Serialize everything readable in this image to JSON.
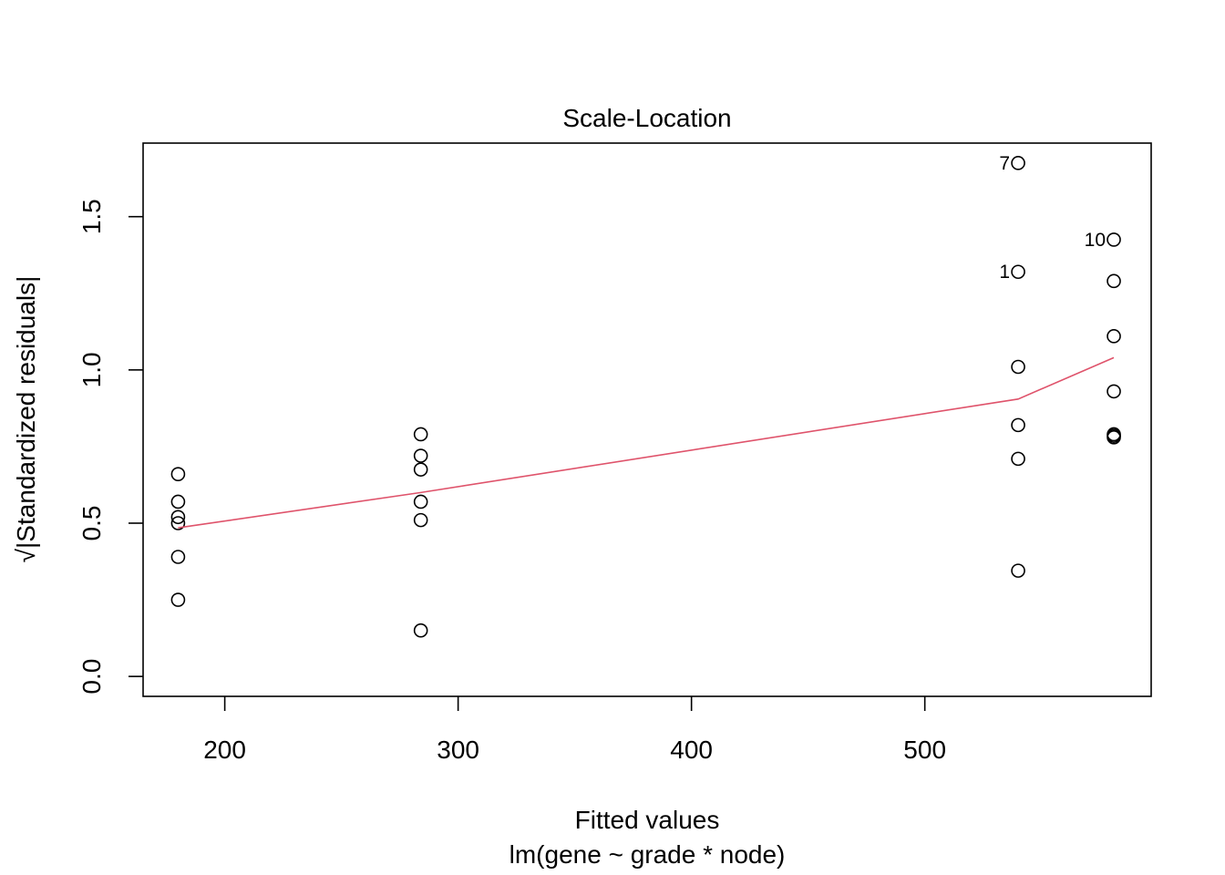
{
  "chart_data": {
    "type": "scatter",
    "title": "Scale-Location",
    "xlabel": "Fitted values",
    "subtitle": "lm(gene ~ grade * node)",
    "ylabel_radical": "√",
    "ylabel": "|Standardized residuals|",
    "xlim": [
      165,
      597
    ],
    "ylim": [
      -0.065,
      1.74
    ],
    "xticks": [
      200,
      300,
      400,
      500
    ],
    "xtick_labels": [
      "200",
      "300",
      "400",
      "500"
    ],
    "yticks": [
      0.0,
      0.5,
      1.0,
      1.5
    ],
    "ytick_labels": [
      "0.0",
      "0.5",
      "1.0",
      "1.5"
    ],
    "grid": false,
    "points": [
      {
        "x": 180,
        "y": 0.66
      },
      {
        "x": 180,
        "y": 0.57
      },
      {
        "x": 180,
        "y": 0.52
      },
      {
        "x": 180,
        "y": 0.5
      },
      {
        "x": 180,
        "y": 0.39
      },
      {
        "x": 180,
        "y": 0.25
      },
      {
        "x": 284,
        "y": 0.79
      },
      {
        "x": 284,
        "y": 0.72
      },
      {
        "x": 284,
        "y": 0.675
      },
      {
        "x": 284,
        "y": 0.57
      },
      {
        "x": 284,
        "y": 0.51
      },
      {
        "x": 284,
        "y": 0.15
      },
      {
        "x": 540,
        "y": 1.675,
        "label": "7"
      },
      {
        "x": 540,
        "y": 1.32,
        "label": "1"
      },
      {
        "x": 540,
        "y": 1.01
      },
      {
        "x": 540,
        "y": 0.82
      },
      {
        "x": 540,
        "y": 0.71
      },
      {
        "x": 540,
        "y": 0.345
      },
      {
        "x": 581,
        "y": 1.425,
        "label": "10"
      },
      {
        "x": 581,
        "y": 1.29
      },
      {
        "x": 581,
        "y": 1.11
      },
      {
        "x": 581,
        "y": 0.93
      },
      {
        "x": 581,
        "y": 0.79
      },
      {
        "x": 581,
        "y": 0.785
      },
      {
        "x": 581,
        "y": 0.78
      }
    ],
    "smooth_line": {
      "color": "#DF536B",
      "x": [
        180,
        284,
        540,
        581
      ],
      "y": [
        0.485,
        0.6,
        0.905,
        1.04
      ]
    }
  }
}
